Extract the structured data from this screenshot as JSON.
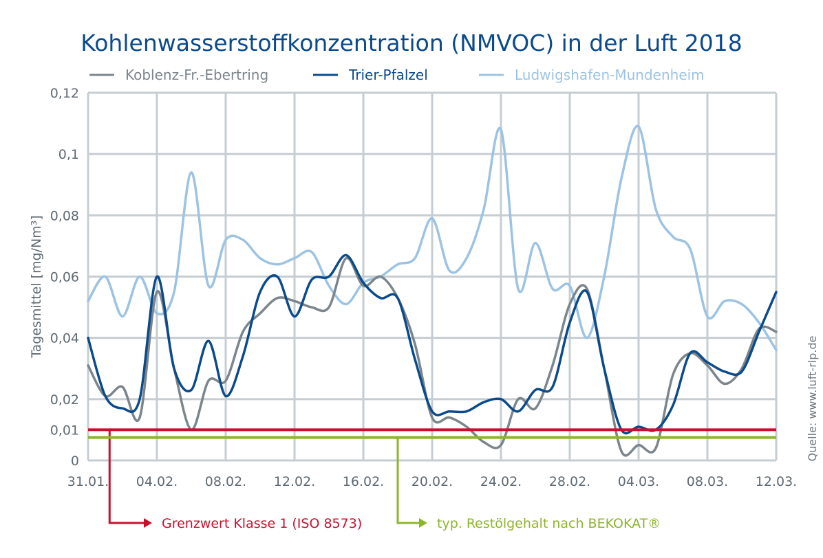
{
  "chart_data": {
    "type": "line",
    "title": "Kohlenwasserstoffkonzentration (NMVOC) in der Luft 2018",
    "ylabel": "Tagesmittel [mg/Nm³]",
    "source": "Quelle: www.luft-rlp.de",
    "grid": true,
    "legend_position": "top",
    "ylim": [
      0,
      0.12
    ],
    "y_ticks": [
      {
        "value": 0,
        "label": "0"
      },
      {
        "value": 0.01,
        "label": "0,01"
      },
      {
        "value": 0.02,
        "label": "0,02"
      },
      {
        "value": 0.04,
        "label": "0,04"
      },
      {
        "value": 0.06,
        "label": "0,06"
      },
      {
        "value": 0.08,
        "label": "0,08"
      },
      {
        "value": 0.1,
        "label": "0,1"
      },
      {
        "value": 0.12,
        "label": "0,12"
      }
    ],
    "x_ticks": [
      "31.01.",
      "04.02.",
      "08.02.",
      "12.02.",
      "16.02.",
      "20.02.",
      "24.02.",
      "28.02.",
      "04.03.",
      "08.03.",
      "12.03."
    ],
    "x": [
      "31.01.",
      "01.02.",
      "02.02.",
      "03.02.",
      "04.02.",
      "05.02.",
      "06.02.",
      "07.02.",
      "08.02.",
      "09.02.",
      "10.02.",
      "11.02.",
      "12.02.",
      "13.02.",
      "14.02.",
      "15.02.",
      "16.02.",
      "17.02.",
      "18.02.",
      "19.02.",
      "20.02.",
      "21.02.",
      "22.02.",
      "23.02.",
      "24.02.",
      "25.02.",
      "26.02.",
      "27.02.",
      "28.02.",
      "01.03.",
      "02.03.",
      "03.03.",
      "04.03.",
      "05.03.",
      "06.03.",
      "07.03.",
      "08.03.",
      "09.03.",
      "10.03.",
      "11.03.",
      "12.03."
    ],
    "series": [
      {
        "name": "Koblenz-Fr.-Ebertring",
        "color": "#7b858c",
        "values": [
          0.031,
          0.021,
          0.024,
          0.014,
          0.055,
          0.03,
          0.01,
          0.026,
          0.026,
          0.042,
          0.048,
          0.053,
          0.052,
          0.05,
          0.05,
          0.066,
          0.057,
          0.06,
          0.053,
          0.038,
          0.014,
          0.014,
          0.011,
          0.006,
          0.005,
          0.02,
          0.017,
          0.031,
          0.051,
          0.056,
          0.03,
          0.003,
          0.005,
          0.004,
          0.028,
          0.035,
          0.031,
          0.025,
          0.03,
          0.043,
          0.042
        ]
      },
      {
        "name": "Trier-Pfalzel",
        "color": "#0b4a8b",
        "values": [
          0.04,
          0.021,
          0.017,
          0.02,
          0.06,
          0.03,
          0.023,
          0.039,
          0.021,
          0.034,
          0.055,
          0.06,
          0.047,
          0.059,
          0.06,
          0.067,
          0.058,
          0.053,
          0.053,
          0.033,
          0.016,
          0.016,
          0.016,
          0.019,
          0.02,
          0.016,
          0.023,
          0.024,
          0.045,
          0.055,
          0.03,
          0.01,
          0.011,
          0.01,
          0.018,
          0.035,
          0.032,
          0.029,
          0.029,
          0.042,
          0.055
        ]
      },
      {
        "name": "Ludwigshafen-Mundenheim",
        "color": "#9cc3e3",
        "values": [
          0.052,
          0.06,
          0.047,
          0.06,
          0.048,
          0.055,
          0.094,
          0.057,
          0.072,
          0.072,
          0.066,
          0.064,
          0.066,
          0.068,
          0.057,
          0.051,
          0.058,
          0.06,
          0.064,
          0.066,
          0.079,
          0.062,
          0.066,
          0.082,
          0.108,
          0.056,
          0.071,
          0.056,
          0.057,
          0.04,
          0.06,
          0.092,
          0.109,
          0.082,
          0.073,
          0.069,
          0.047,
          0.052,
          0.051,
          0.045,
          0.036
        ]
      }
    ],
    "threshold_lines": [
      {
        "label": "Grenzwert Klasse 1 (ISO 8573)",
        "value": 0.01,
        "color": "#c8102e",
        "arrow_from_day": 1.25
      },
      {
        "label": "typ. Restölgehalt nach BEKOKAT®",
        "value": 0.0075,
        "color": "#8db52a",
        "arrow_from_day": 18.0
      }
    ]
  }
}
